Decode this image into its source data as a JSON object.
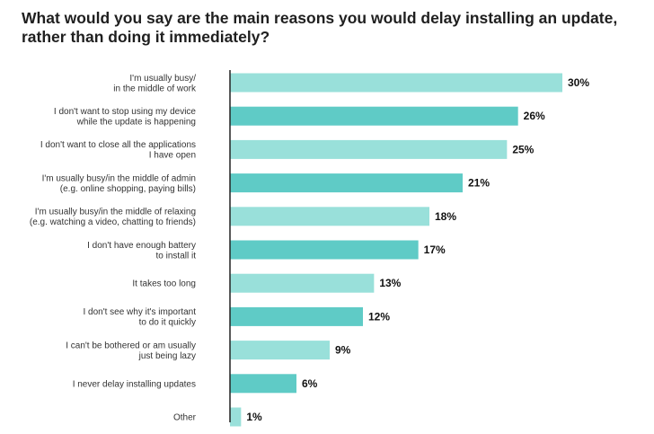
{
  "chart_data": {
    "type": "bar",
    "orientation": "horizontal",
    "title": "What would you say are the main reasons you would delay installing an update, rather than doing it immediately?",
    "categories": [
      [
        "I'm usually busy/",
        "in the middle of work"
      ],
      [
        "I don't want to stop using my device",
        "while the update is happening"
      ],
      [
        "I don't want to close all the applications",
        "I have open"
      ],
      [
        "I'm usually busy/in the middle of admin",
        "(e.g. online shopping, paying bills)"
      ],
      [
        "I'm usually busy/in the middle of relaxing",
        "(e.g. watching a video, chatting to friends)"
      ],
      [
        "I don't have enough battery",
        "to install it"
      ],
      [
        "It takes too long"
      ],
      [
        "I don't see why it's important",
        "to do it quickly"
      ],
      [
        "I can't be bothered or am usually",
        "just being lazy"
      ],
      [
        "I never delay installing updates"
      ],
      [
        "Other"
      ]
    ],
    "values": [
      30,
      26,
      25,
      21,
      18,
      17,
      13,
      12,
      9,
      6,
      1
    ],
    "value_labels": [
      "30%",
      "26%",
      "25%",
      "21%",
      "18%",
      "17%",
      "13%",
      "12%",
      "9%",
      "6%",
      "1%"
    ],
    "unit": "%",
    "xlim": [
      0,
      30
    ],
    "colors": [
      "#99e0da",
      "#5fcbc6"
    ],
    "grid": false,
    "legend": "none"
  }
}
